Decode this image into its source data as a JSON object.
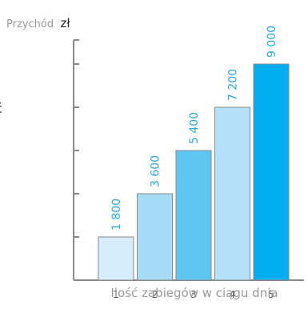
{
  "chart_data": {
    "type": "bar",
    "ylabel": "Przychód",
    "ylabel_unit": "zł",
    "xlabel": "Ilość zabiegów w ciągu dnia",
    "categories": [
      "1",
      "2",
      "3",
      "4",
      "5"
    ],
    "values": [
      1800,
      3600,
      5400,
      7200,
      9000
    ],
    "value_labels": [
      "1 800",
      "3 600",
      "5 400",
      "7 200",
      "9 000"
    ],
    "ylim": [
      0,
      10000
    ],
    "yticks": [
      0,
      1800,
      3600,
      5400,
      7200,
      9000
    ],
    "grid": false,
    "colors": {
      "bars": [
        "#d6eefb",
        "#a6dbf5",
        "#5fc5f1",
        "#b3e1f7",
        "#00aeef"
      ],
      "bar_stroke": "#8a8a8a",
      "value_label": "#29abe2",
      "axis": "#8a8a8a"
    }
  },
  "edge_glyphs": [
    "ć",
    "!"
  ]
}
